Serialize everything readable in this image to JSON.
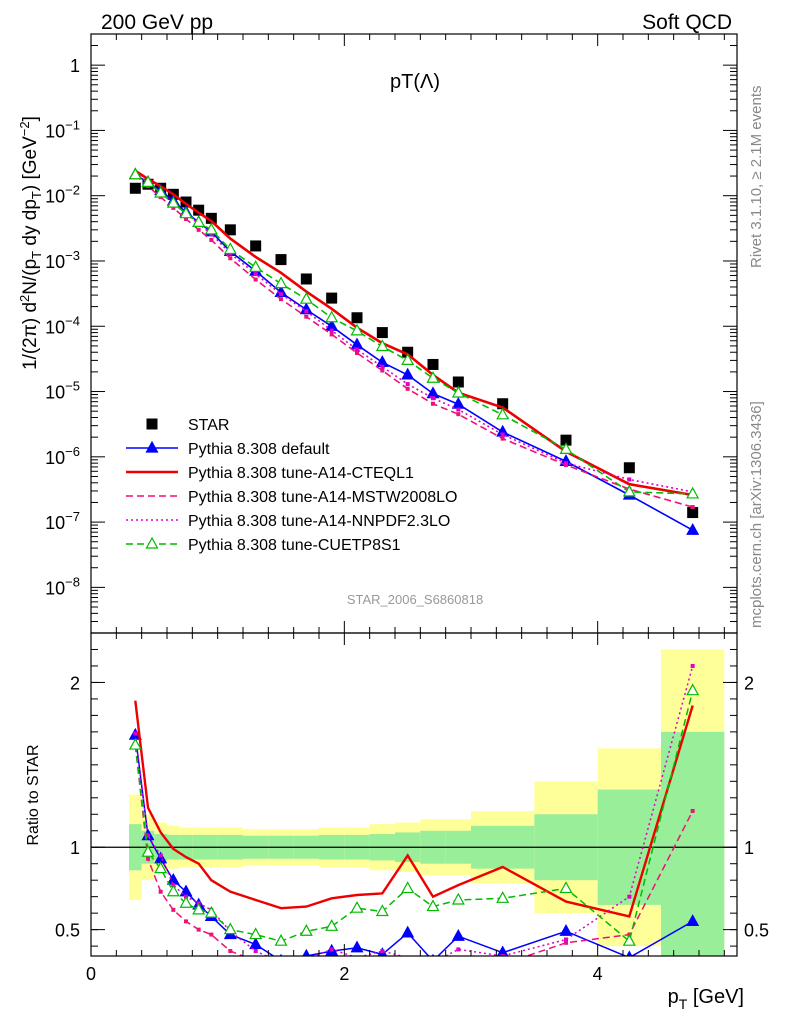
{
  "header": {
    "left": "200 GeV pp",
    "right": "Soft QCD"
  },
  "side_labels": {
    "rivet": "Rivet 3.1.10, ≥ 2.1M events",
    "mcplots": "mcplots.cern.ch [arXiv:1306.3436]"
  },
  "chart_data": [
    {
      "type": "scatter",
      "title": "pT(Λ)",
      "watermark": "STAR_2006_S6860818",
      "xlabel": "p_T [GeV]",
      "ylabel": "1/(2π) d²N/(p_T dy dp_T) [GeV⁻²]",
      "xlim": [
        0,
        5.1
      ],
      "ylim": [
        2e-09,
        3
      ],
      "yscale": "log",
      "y_ticks": [
        {
          "value": 1,
          "base": "1",
          "exp": ""
        },
        {
          "value": 0.1,
          "base": "10",
          "exp": "−1"
        },
        {
          "value": 0.01,
          "base": "10",
          "exp": "−2"
        },
        {
          "value": 0.001,
          "base": "10",
          "exp": "−3"
        },
        {
          "value": 0.0001,
          "base": "10",
          "exp": "−4"
        },
        {
          "value": 1e-05,
          "base": "10",
          "exp": "−5"
        },
        {
          "value": 1e-06,
          "base": "10",
          "exp": "−6"
        },
        {
          "value": 1e-07,
          "base": "10",
          "exp": "−7"
        },
        {
          "value": 1e-08,
          "base": "10",
          "exp": "−8"
        }
      ],
      "x_ticks": [
        0,
        2,
        4
      ],
      "legend_position": "bottom-left",
      "series": [
        {
          "name": "STAR",
          "color": "#000000",
          "style": "square-markers",
          "x": [
            0.35,
            0.45,
            0.55,
            0.65,
            0.75,
            0.85,
            0.95,
            1.1,
            1.3,
            1.5,
            1.7,
            1.9,
            2.1,
            2.3,
            2.5,
            2.7,
            2.9,
            3.25,
            3.75,
            4.25,
            4.75
          ],
          "y": [
            0.013,
            0.015,
            0.013,
            0.0105,
            0.008,
            0.006,
            0.0045,
            0.003,
            0.0017,
            0.00105,
            0.00053,
            0.00027,
            0.000135,
            8e-05,
            4e-05,
            2.6e-05,
            1.4e-05,
            6.5e-06,
            1.8e-06,
            6.8e-07,
            1.4e-07
          ]
        },
        {
          "name": "Pythia 8.308 default",
          "color": "#0000ff",
          "style": "solid-filled-triangles",
          "x": [
            0.35,
            0.45,
            0.55,
            0.65,
            0.75,
            0.85,
            0.95,
            1.1,
            1.3,
            1.5,
            1.7,
            1.9,
            2.1,
            2.3,
            2.5,
            2.7,
            2.9,
            3.25,
            3.75,
            4.25,
            4.75
          ],
          "y": [
            0.021,
            0.016,
            0.012,
            0.0083,
            0.0056,
            0.0039,
            0.0028,
            0.0014,
            0.0007,
            0.00033,
            0.00018,
            0.0001,
            5.2e-05,
            2.8e-05,
            1.8e-05,
            9.3e-06,
            6.4e-06,
            2.4e-06,
            8.5e-07,
            2.6e-07,
            7.5e-08
          ]
        },
        {
          "name": "Pythia 8.308 tune-A14-CTEQL1",
          "color": "#ee0000",
          "style": "solid",
          "x": [
            0.35,
            0.45,
            0.55,
            0.65,
            0.75,
            0.85,
            0.95,
            1.1,
            1.3,
            1.5,
            1.7,
            1.9,
            2.1,
            2.3,
            2.5,
            2.7,
            2.9,
            3.25,
            3.75,
            4.25,
            4.75
          ],
          "y": [
            0.024,
            0.018,
            0.014,
            0.0105,
            0.0075,
            0.0055,
            0.0041,
            0.0022,
            0.00115,
            0.00066,
            0.00034,
            0.000185,
            9.5e-05,
            5.5e-05,
            3.7e-05,
            1.8e-05,
            9.6e-06,
            5.7e-06,
            1.2e-06,
            3.8e-07,
            2.6e-07
          ]
        },
        {
          "name": "Pythia 8.308 tune-A14-MSTW2008LO",
          "color": "#ee1177",
          "style": "dashed-bars",
          "x": [
            0.35,
            0.45,
            0.55,
            0.65,
            0.75,
            0.85,
            0.95,
            1.1,
            1.3,
            1.5,
            1.7,
            1.9,
            2.1,
            2.3,
            2.5,
            2.7,
            2.9,
            3.25,
            3.75,
            4.25,
            4.75
          ],
          "y": [
            0.021,
            0.014,
            0.0095,
            0.0065,
            0.0044,
            0.003,
            0.0021,
            0.0011,
            0.00052,
            0.00026,
            0.00014,
            7.5e-05,
            3.9e-05,
            2.1e-05,
            1.1e-05,
            6.5e-06,
            4.5e-06,
            1.9e-06,
            7.5e-07,
            3.2e-07,
            1.7e-07
          ]
        },
        {
          "name": "Pythia 8.308 tune-A14-NNPDF2.3LO",
          "color": "#dd00cc",
          "style": "dotted",
          "x": [
            0.35,
            0.45,
            0.55,
            0.65,
            0.75,
            0.85,
            0.95,
            1.1,
            1.3,
            1.5,
            1.7,
            1.9,
            2.1,
            2.3,
            2.5,
            2.7,
            2.9,
            3.25,
            3.75,
            4.25,
            4.75
          ],
          "y": [
            0.022,
            0.016,
            0.011,
            0.0077,
            0.0053,
            0.0037,
            0.0026,
            0.0013,
            0.00063,
            0.00031,
            0.00017,
            8.6e-05,
            4.4e-05,
            2.4e-05,
            1.3e-05,
            7.9e-06,
            5.3e-06,
            2.2e-06,
            8e-07,
            4.5e-07,
            2.9e-07
          ]
        },
        {
          "name": "Pythia 8.308 tune-CUETP8S1",
          "color": "#00bb00",
          "style": "dashed-open-triangles",
          "x": [
            0.35,
            0.45,
            0.55,
            0.65,
            0.75,
            0.85,
            0.95,
            1.1,
            1.3,
            1.5,
            1.7,
            1.9,
            2.1,
            2.3,
            2.5,
            2.7,
            2.9,
            3.25,
            3.75,
            4.25,
            4.75
          ],
          "y": [
            0.021,
            0.016,
            0.011,
            0.0077,
            0.0053,
            0.0039,
            0.003,
            0.0015,
            0.0008,
            0.00045,
            0.00026,
            0.000135,
            8.5e-05,
            4.9e-05,
            3e-05,
            1.6e-05,
            9.5e-06,
            4.4e-06,
            1.3e-06,
            2.9e-07,
            2.7e-07
          ]
        }
      ]
    },
    {
      "type": "line",
      "ylabel": "Ratio to STAR",
      "xlim": [
        0,
        5.1
      ],
      "ylim": [
        0.34,
        2.3
      ],
      "y_ticks": [
        0.5,
        1,
        2
      ],
      "x_ticks": [
        0,
        2,
        4
      ],
      "x_edges": [
        0.3,
        0.4,
        0.5,
        0.6,
        0.7,
        0.8,
        0.9,
        1.0,
        1.2,
        1.4,
        1.6,
        1.8,
        2.0,
        2.2,
        2.4,
        2.6,
        2.8,
        3.0,
        3.5,
        4.0,
        4.5,
        5.0
      ],
      "band_inner": [
        0.14,
        0.1,
        0.08,
        0.075,
        0.075,
        0.075,
        0.075,
        0.075,
        0.07,
        0.07,
        0.07,
        0.075,
        0.075,
        0.08,
        0.09,
        0.1,
        0.1,
        0.13,
        0.2,
        0.35,
        0.7
      ],
      "band_outer": [
        0.32,
        0.2,
        0.15,
        0.13,
        0.12,
        0.12,
        0.12,
        0.12,
        0.11,
        0.11,
        0.11,
        0.12,
        0.12,
        0.14,
        0.15,
        0.17,
        0.17,
        0.22,
        0.4,
        0.6,
        1.2
      ],
      "series": [
        {
          "name": "Pythia 8.308 default",
          "color": "#0000ff",
          "x": [
            0.35,
            0.45,
            0.55,
            0.65,
            0.75,
            0.85,
            0.95,
            1.1,
            1.3,
            1.5,
            1.7,
            1.9,
            2.1,
            2.3,
            2.5,
            2.7,
            2.9,
            3.25,
            3.75,
            4.25,
            4.75
          ],
          "y": [
            1.68,
            1.07,
            0.93,
            0.8,
            0.73,
            0.65,
            0.58,
            0.47,
            0.41,
            0.31,
            0.34,
            0.37,
            0.39,
            0.35,
            0.48,
            0.31,
            0.46,
            0.36,
            0.49,
            0.33,
            0.55
          ]
        },
        {
          "name": "Pythia 8.308 tune-A14-CTEQL1",
          "color": "#ee0000",
          "x": [
            0.35,
            0.45,
            0.55,
            0.65,
            0.75,
            0.85,
            0.95,
            1.1,
            1.3,
            1.5,
            1.7,
            1.9,
            2.1,
            2.3,
            2.5,
            2.7,
            2.9,
            3.25,
            3.75,
            4.25,
            4.75
          ],
          "y": [
            1.89,
            1.24,
            1.09,
            0.99,
            0.94,
            0.9,
            0.8,
            0.73,
            0.68,
            0.63,
            0.64,
            0.69,
            0.71,
            0.72,
            0.95,
            0.7,
            0.77,
            0.88,
            0.67,
            0.58,
            1.86
          ]
        },
        {
          "name": "Pythia 8.308 tune-A14-MSTW2008LO",
          "color": "#ee1177",
          "x": [
            0.35,
            0.45,
            0.55,
            0.65,
            0.75,
            0.85,
            0.95,
            1.1,
            1.3,
            1.5,
            1.7,
            1.9,
            2.1,
            2.3,
            2.5,
            2.7,
            2.9,
            3.25,
            3.75,
            4.25,
            4.75
          ],
          "y": [
            1.62,
            0.93,
            0.73,
            0.62,
            0.55,
            0.5,
            0.47,
            0.37,
            0.31,
            0.25,
            0.26,
            0.28,
            0.29,
            0.26,
            0.28,
            0.25,
            0.32,
            0.29,
            0.42,
            0.47,
            1.22
          ]
        },
        {
          "name": "Pythia 8.308 tune-A14-NNPDF2.3LO",
          "color": "#dd00cc",
          "x": [
            0.35,
            0.45,
            0.55,
            0.65,
            0.75,
            0.85,
            0.95,
            1.1,
            1.3,
            1.5,
            1.7,
            1.9,
            2.1,
            2.3,
            2.5,
            2.7,
            2.9,
            3.25,
            3.75,
            4.25,
            4.75
          ],
          "y": [
            1.69,
            1.07,
            0.95,
            0.77,
            0.7,
            0.66,
            0.62,
            0.49,
            0.37,
            0.3,
            0.32,
            0.38,
            0.33,
            0.37,
            0.33,
            0.3,
            0.38,
            0.34,
            0.44,
            0.7,
            2.1
          ]
        },
        {
          "name": "Pythia 8.308 tune-CUETP8S1",
          "color": "#00bb00",
          "x": [
            0.35,
            0.45,
            0.55,
            0.65,
            0.75,
            0.85,
            0.95,
            1.1,
            1.3,
            1.5,
            1.7,
            1.9,
            2.1,
            2.3,
            2.5,
            2.7,
            2.9,
            3.25,
            3.75,
            4.25,
            4.75
          ],
          "y": [
            1.62,
            0.97,
            0.87,
            0.73,
            0.66,
            0.62,
            0.6,
            0.5,
            0.47,
            0.43,
            0.49,
            0.52,
            0.63,
            0.61,
            0.75,
            0.64,
            0.68,
            0.69,
            0.75,
            0.43,
            1.95
          ]
        }
      ]
    }
  ]
}
